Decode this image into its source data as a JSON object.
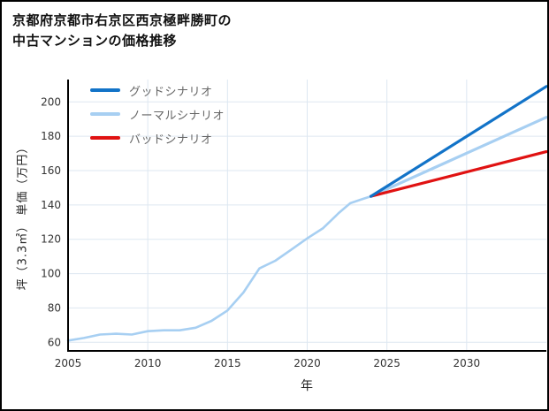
{
  "title": {
    "line1": "京都府京都市右京区西京極畔勝町の",
    "line2": "中古マンションの価格推移"
  },
  "chart_data": {
    "type": "line",
    "title": "京都府京都市右京区西京極畔勝町の中古マンションの価格推移",
    "xlabel": "年",
    "ylabel": "坪（3.3㎡） 単価（万円）",
    "xlim": [
      2005,
      2035
    ],
    "ylim": [
      55,
      213
    ],
    "xticks": [
      2005,
      2010,
      2015,
      2020,
      2025,
      2030
    ],
    "yticks": [
      60,
      80,
      100,
      120,
      140,
      160,
      180,
      200
    ],
    "grid": true,
    "legend_position": "upper-left-inside",
    "colors": {
      "good": "#1273c8",
      "normal": "#a7cff2",
      "bad": "#e01212",
      "history": "#a7cff2",
      "grid": "#dde7f1",
      "axis": "#000000"
    },
    "series": [
      {
        "name": "グッドシナリオ",
        "color": "#1273c8",
        "width": 3.2,
        "x": [
          2024,
          2035
        ],
        "y": [
          145,
          209
        ]
      },
      {
        "name": "ノーマルシナリオ",
        "color": "#a7cff2",
        "width": 3.2,
        "x": [
          2024,
          2035
        ],
        "y": [
          145,
          191
        ]
      },
      {
        "name": "バッドシナリオ",
        "color": "#e01212",
        "width": 3.2,
        "x": [
          2024,
          2035
        ],
        "y": [
          145,
          171
        ]
      },
      {
        "name": "",
        "color": "#a7cff2",
        "width": 2.6,
        "x": [
          2005,
          2006,
          2007,
          2008,
          2009,
          2010,
          2011,
          2012,
          2013,
          2014,
          2015,
          2016,
          2017,
          2018,
          2019,
          2020,
          2021,
          2022,
          2022.7,
          2023.5,
          2024
        ],
        "y": [
          61,
          62.5,
          64.5,
          65,
          64.5,
          66.5,
          67,
          67,
          68.5,
          72.5,
          78.5,
          89,
          103,
          107.5,
          114,
          120.5,
          126.5,
          135.5,
          141,
          143.5,
          145
        ]
      }
    ]
  }
}
